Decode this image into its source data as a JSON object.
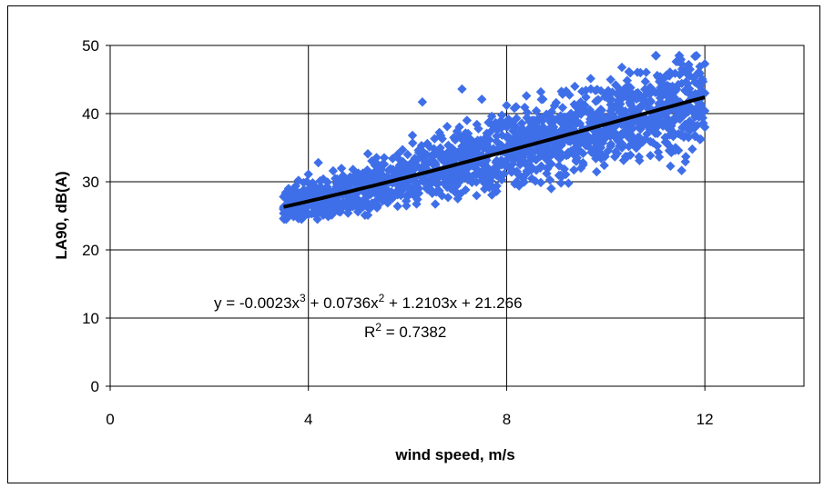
{
  "chart_data": {
    "type": "scatter",
    "xlabel": "wind speed, m/s",
    "ylabel": "LA90, dB(A)",
    "xlim": [
      0,
      14
    ],
    "ylim": [
      0,
      50
    ],
    "x_ticks": [
      "0",
      "4",
      "8",
      "12"
    ],
    "y_ticks": [
      "0",
      "10",
      "20",
      "30",
      "40",
      "50"
    ],
    "grid": true,
    "marker": "diamond",
    "point_color": "#3f6fe8",
    "trend_color": "#000000",
    "x_range_points": [
      3.5,
      12.0
    ],
    "trendline": {
      "type": "polynomial",
      "degree": 3,
      "coefficients": [
        -0.0023,
        0.0736,
        1.2103,
        21.266
      ],
      "r2": 0.7382,
      "x_range": [
        3.5,
        12.0
      ]
    },
    "equation_parts": {
      "a": "y = -0.0023x",
      "b": " + 0.0736x",
      "c": " + 1.2103x + 21.266",
      "sup": "3",
      "sup2": "2"
    },
    "r2_parts": {
      "r": "R",
      "sup": "2",
      "rest": " = 0.7382"
    },
    "points": [
      [
        3.5,
        26.1
      ],
      [
        3.5,
        24.6
      ],
      [
        3.5,
        27.8
      ],
      [
        3.6,
        25.3
      ],
      [
        3.6,
        29.0
      ],
      [
        3.6,
        25.9
      ],
      [
        3.7,
        26.7
      ],
      [
        3.7,
        24.9
      ],
      [
        3.7,
        28.3
      ],
      [
        3.8,
        25.6
      ],
      [
        3.8,
        27.4
      ],
      [
        3.8,
        30.2
      ],
      [
        3.9,
        26.0
      ],
      [
        3.9,
        24.8
      ],
      [
        3.9,
        28.8
      ],
      [
        4.0,
        26.5
      ],
      [
        4.0,
        25.2
      ],
      [
        4.0,
        31.1
      ],
      [
        4.1,
        27.0
      ],
      [
        4.1,
        29.6
      ],
      [
        4.1,
        25.5
      ],
      [
        4.2,
        32.8
      ],
      [
        4.2,
        26.8
      ],
      [
        4.2,
        28.1
      ],
      [
        4.3,
        25.1
      ],
      [
        4.3,
        27.5
      ],
      [
        4.3,
        30.4
      ],
      [
        4.4,
        26.2
      ],
      [
        4.4,
        28.9
      ],
      [
        4.4,
        24.9
      ],
      [
        4.5,
        27.9
      ],
      [
        4.5,
        31.6
      ],
      [
        4.5,
        26.0
      ],
      [
        4.6,
        29.2
      ],
      [
        4.6,
        25.7
      ],
      [
        4.6,
        27.1
      ],
      [
        4.7,
        28.4
      ],
      [
        4.7,
        26.4
      ],
      [
        4.7,
        30.9
      ],
      [
        4.8,
        25.4
      ],
      [
        4.8,
        27.8
      ],
      [
        4.8,
        29.5
      ],
      [
        4.9,
        26.9
      ],
      [
        4.9,
        28.2
      ],
      [
        4.9,
        31.8
      ],
      [
        5.0,
        25.6
      ],
      [
        5.0,
        27.3
      ],
      [
        5.0,
        29.9
      ],
      [
        5.1,
        28.6
      ],
      [
        5.1,
        26.3
      ],
      [
        5.1,
        30.7
      ],
      [
        5.2,
        25.1
      ],
      [
        5.2,
        27.9
      ],
      [
        5.2,
        34.1
      ],
      [
        5.3,
        29.0
      ],
      [
        5.3,
        26.8
      ],
      [
        5.3,
        31.2
      ],
      [
        5.4,
        28.3
      ],
      [
        5.4,
        30.1
      ],
      [
        5.4,
        26.5
      ],
      [
        5.5,
        29.4
      ],
      [
        5.5,
        27.2
      ],
      [
        5.5,
        32.6
      ],
      [
        5.6,
        28.7
      ],
      [
        5.6,
        30.8
      ],
      [
        5.6,
        26.9
      ],
      [
        5.7,
        29.8
      ],
      [
        5.7,
        27.6
      ],
      [
        5.7,
        33.4
      ],
      [
        5.8,
        28.1
      ],
      [
        5.8,
        31.4
      ],
      [
        5.8,
        26.4
      ],
      [
        5.9,
        30.0
      ],
      [
        5.9,
        28.8
      ],
      [
        5.9,
        34.7
      ],
      [
        6.0,
        27.9
      ],
      [
        6.0,
        31.9
      ],
      [
        6.0,
        29.3
      ],
      [
        6.1,
        30.6
      ],
      [
        6.1,
        28.2
      ],
      [
        6.1,
        36.8
      ],
      [
        6.2,
        29.7
      ],
      [
        6.2,
        32.3
      ],
      [
        6.2,
        27.4
      ],
      [
        6.3,
        41.7
      ],
      [
        6.3,
        30.2
      ],
      [
        6.3,
        33.8
      ],
      [
        6.4,
        28.9
      ],
      [
        6.4,
        31.5
      ],
      [
        6.4,
        35.6
      ],
      [
        6.5,
        30.4
      ],
      [
        6.5,
        32.9
      ],
      [
        6.5,
        28.3
      ],
      [
        6.6,
        31.1
      ],
      [
        6.6,
        34.4
      ],
      [
        6.6,
        29.6
      ],
      [
        6.7,
        36.3
      ],
      [
        6.7,
        30.8
      ],
      [
        6.7,
        33.2
      ],
      [
        6.8,
        29.2
      ],
      [
        6.8,
        32.0
      ],
      [
        6.8,
        38.1
      ],
      [
        6.9,
        30.1
      ],
      [
        6.9,
        34.9
      ],
      [
        6.9,
        31.7
      ],
      [
        7.0,
        29.8
      ],
      [
        7.0,
        33.6
      ],
      [
        7.0,
        37.4
      ],
      [
        7.1,
        43.6
      ],
      [
        7.1,
        31.3
      ],
      [
        7.1,
        35.2
      ],
      [
        7.2,
        30.5
      ],
      [
        7.2,
        33.0
      ],
      [
        7.2,
        39.0
      ],
      [
        7.3,
        32.4
      ],
      [
        7.3,
        29.9
      ],
      [
        7.3,
        36.0
      ],
      [
        7.4,
        34.1
      ],
      [
        7.4,
        31.8
      ],
      [
        7.4,
        38.4
      ],
      [
        7.5,
        30.7
      ],
      [
        7.5,
        33.9
      ],
      [
        7.5,
        42.1
      ],
      [
        7.6,
        35.5
      ],
      [
        7.6,
        32.2
      ],
      [
        7.6,
        37.1
      ],
      [
        7.7,
        31.0
      ],
      [
        7.7,
        34.6
      ],
      [
        7.7,
        39.6
      ],
      [
        7.8,
        28.6
      ],
      [
        7.8,
        33.1
      ],
      [
        7.8,
        36.7
      ],
      [
        7.9,
        30.3
      ],
      [
        7.9,
        35.0
      ],
      [
        7.9,
        38.8
      ],
      [
        8.0,
        32.6
      ],
      [
        8.0,
        34.3
      ],
      [
        8.0,
        41.2
      ],
      [
        8.1,
        31.4
      ],
      [
        8.1,
        36.2
      ],
      [
        8.1,
        33.7
      ],
      [
        8.2,
        30.0
      ],
      [
        8.2,
        35.8
      ],
      [
        8.2,
        39.3
      ],
      [
        8.3,
        32.9
      ],
      [
        8.3,
        37.5
      ],
      [
        8.3,
        34.6
      ],
      [
        8.4,
        31.2
      ],
      [
        8.4,
        36.9
      ],
      [
        8.4,
        42.6
      ],
      [
        8.5,
        33.5
      ],
      [
        8.5,
        38.2
      ],
      [
        8.5,
        35.4
      ],
      [
        8.6,
        31.7
      ],
      [
        8.6,
        36.5
      ],
      [
        8.6,
        40.4
      ],
      [
        8.7,
        34.2
      ],
      [
        8.7,
        37.8
      ],
      [
        8.7,
        32.3
      ],
      [
        8.8,
        35.9
      ],
      [
        8.8,
        39.7
      ],
      [
        8.8,
        33.3
      ],
      [
        8.9,
        36.3
      ],
      [
        8.9,
        29.0
      ],
      [
        8.9,
        38.6
      ],
      [
        9.0,
        34.8
      ],
      [
        9.0,
        41.6
      ],
      [
        9.0,
        37.0
      ],
      [
        9.1,
        33.6
      ],
      [
        9.1,
        39.1
      ],
      [
        9.1,
        35.7
      ],
      [
        9.2,
        38.0
      ],
      [
        9.2,
        36.4
      ],
      [
        9.2,
        43.3
      ],
      [
        9.3,
        34.5
      ],
      [
        9.3,
        40.0
      ],
      [
        9.3,
        37.3
      ],
      [
        9.4,
        35.1
      ],
      [
        9.4,
        41.0
      ],
      [
        9.4,
        38.9
      ],
      [
        9.5,
        32.0
      ],
      [
        9.5,
        36.8
      ],
      [
        9.5,
        39.9
      ],
      [
        9.6,
        37.6
      ],
      [
        9.6,
        42.4
      ],
      [
        9.6,
        35.3
      ],
      [
        9.7,
        38.7
      ],
      [
        9.7,
        43.6
      ],
      [
        9.7,
        36.1
      ],
      [
        9.8,
        33.4
      ],
      [
        9.8,
        39.4
      ],
      [
        9.8,
        41.8
      ],
      [
        9.9,
        37.2
      ],
      [
        9.9,
        40.6
      ],
      [
        9.9,
        35.0
      ],
      [
        10.0,
        38.3
      ],
      [
        10.0,
        42.9
      ],
      [
        10.0,
        36.6
      ],
      [
        10.1,
        39.8
      ],
      [
        10.1,
        37.9
      ],
      [
        10.1,
        41.3
      ],
      [
        10.2,
        34.4
      ],
      [
        10.2,
        38.6
      ],
      [
        10.2,
        44.2
      ],
      [
        10.3,
        36.9
      ],
      [
        10.3,
        40.2
      ],
      [
        10.3,
        42.0
      ],
      [
        10.4,
        33.7
      ],
      [
        10.4,
        39.0
      ],
      [
        10.4,
        37.4
      ],
      [
        10.5,
        41.5
      ],
      [
        10.5,
        38.1
      ],
      [
        10.5,
        43.8
      ],
      [
        10.6,
        35.6
      ],
      [
        10.6,
        39.6
      ],
      [
        10.6,
        42.7
      ],
      [
        10.7,
        37.7
      ],
      [
        10.7,
        46.0
      ],
      [
        10.7,
        40.8
      ],
      [
        10.8,
        36.3
      ],
      [
        10.8,
        39.3
      ],
      [
        10.8,
        44.7
      ],
      [
        10.9,
        38.5
      ],
      [
        10.9,
        41.9
      ],
      [
        10.9,
        35.9
      ],
      [
        11.0,
        40.1
      ],
      [
        11.0,
        43.1
      ],
      [
        11.0,
        37.1
      ],
      [
        11.1,
        39.7
      ],
      [
        11.1,
        42.3
      ],
      [
        11.1,
        45.4
      ],
      [
        11.2,
        38.9
      ],
      [
        11.2,
        41.2
      ],
      [
        11.2,
        36.5
      ],
      [
        11.3,
        40.5
      ],
      [
        11.3,
        43.9
      ],
      [
        11.3,
        37.8
      ],
      [
        11.4,
        34.6
      ],
      [
        11.4,
        42.2
      ],
      [
        11.4,
        45.9
      ],
      [
        11.5,
        39.2
      ],
      [
        11.5,
        41.7
      ],
      [
        11.5,
        47.8
      ],
      [
        11.6,
        38.4
      ],
      [
        11.6,
        43.4
      ],
      [
        11.6,
        40.9
      ],
      [
        11.7,
        46.5
      ],
      [
        11.7,
        37.6
      ],
      [
        11.7,
        42.8
      ],
      [
        11.8,
        48.4
      ],
      [
        11.8,
        39.5
      ],
      [
        11.8,
        44.6
      ],
      [
        11.9,
        41.1
      ],
      [
        11.9,
        46.9
      ],
      [
        11.9,
        36.2
      ],
      [
        12.0,
        43.0
      ],
      [
        12.0,
        47.3
      ],
      [
        12.0,
        40.4
      ],
      [
        12.0,
        38.0
      ],
      [
        11.9,
        44.0
      ]
    ]
  }
}
